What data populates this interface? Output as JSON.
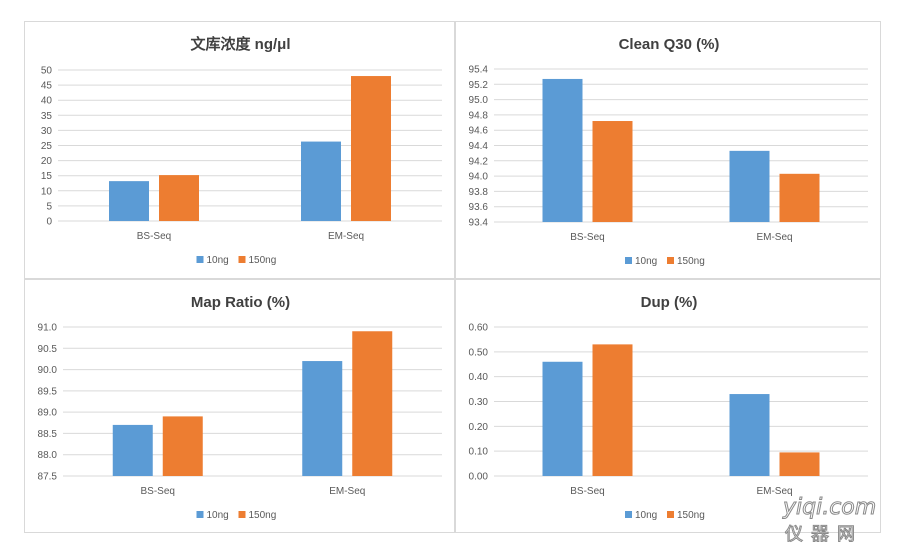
{
  "colors": {
    "s1": "#5b9bd5",
    "s2": "#ed7d31"
  },
  "chart_data": [
    {
      "type": "bar",
      "title": "文库浓度 ng/μl",
      "categories": [
        "BS-Seq",
        "EM-Seq"
      ],
      "series": [
        {
          "name": "10ng",
          "values": [
            13.2,
            26.3
          ]
        },
        {
          "name": "150ng",
          "values": [
            15.2,
            48.0
          ]
        }
      ],
      "ylim": [
        0,
        50
      ],
      "yticks": [
        "0",
        "5",
        "10",
        "15",
        "20",
        "25",
        "30",
        "35",
        "40",
        "45",
        "50"
      ],
      "grid": true,
      "legend": "bottom"
    },
    {
      "type": "bar",
      "title": "Clean Q30 (%)",
      "categories": [
        "BS-Seq",
        "EM-Seq"
      ],
      "series": [
        {
          "name": "10ng",
          "values": [
            95.27,
            94.33
          ]
        },
        {
          "name": "150ng",
          "values": [
            94.72,
            94.03
          ]
        }
      ],
      "ylim": [
        93.4,
        95.4
      ],
      "yticks": [
        "93.4",
        "93.6",
        "93.8",
        "94.0",
        "94.2",
        "94.4",
        "94.6",
        "94.8",
        "95.0",
        "95.2",
        "95.4"
      ],
      "grid": true,
      "legend": "bottom"
    },
    {
      "type": "bar",
      "title": "Map Ratio (%)",
      "categories": [
        "BS-Seq",
        "EM-Seq"
      ],
      "series": [
        {
          "name": "10ng",
          "values": [
            88.7,
            90.2
          ]
        },
        {
          "name": "150ng",
          "values": [
            88.9,
            90.9
          ]
        }
      ],
      "ylim": [
        87.5,
        91.0
      ],
      "yticks": [
        "87.5",
        "88.0",
        "88.5",
        "89.0",
        "89.5",
        "90.0",
        "90.5",
        "91.0"
      ],
      "grid": true,
      "legend": "bottom"
    },
    {
      "type": "bar",
      "title": "Dup (%)",
      "categories": [
        "BS-Seq",
        "EM-Seq"
      ],
      "series": [
        {
          "name": "10ng",
          "values": [
            0.46,
            0.33
          ]
        },
        {
          "name": "150ng",
          "values": [
            0.53,
            0.095
          ]
        }
      ],
      "ylim": [
        0,
        0.6
      ],
      "yticks": [
        "0.00",
        "0.10",
        "0.20",
        "0.30",
        "0.40",
        "0.50",
        "0.60"
      ],
      "grid": true,
      "legend": "bottom"
    }
  ],
  "watermark": {
    "line1": "yiqi.com",
    "line2": "仪器网"
  }
}
